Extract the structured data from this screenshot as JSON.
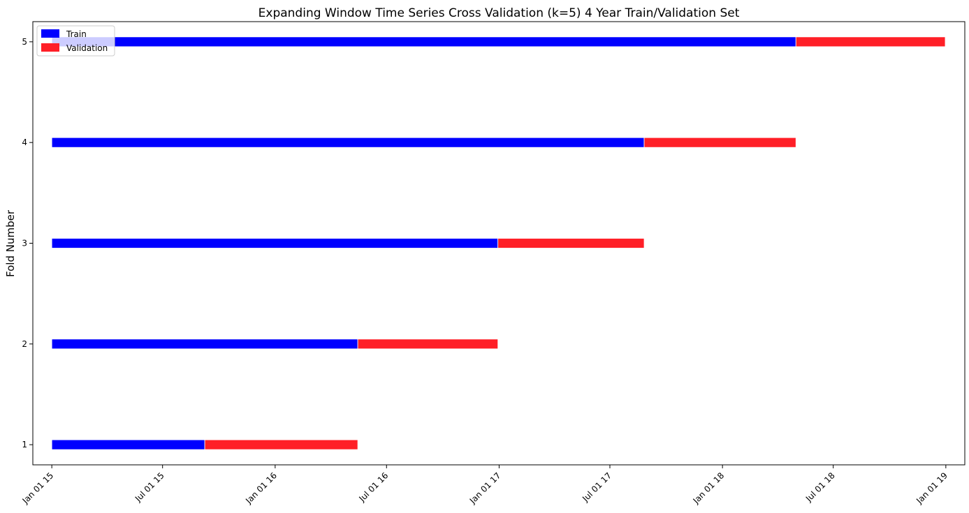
{
  "chart_data": {
    "type": "bar",
    "orientation": "horizontal",
    "title": "Expanding Window Time Series Cross Validation (k=5) 4 Year Train/Validation Set",
    "xlabel": "",
    "ylabel": "Fold Number",
    "x_ticks": [
      "Jan 01 15",
      "Jul 01 15",
      "Jan 01 16",
      "Jul 01 16",
      "Jan 01 17",
      "Jul 01 17",
      "Jan 01 18",
      "Jul 01 18",
      "Jan 01 19"
    ],
    "y_ticks": [
      "1",
      "2",
      "3",
      "4",
      "5"
    ],
    "xlim": [
      "2014-12-01",
      "2019-02-01"
    ],
    "ylim": [
      0.8,
      5.2
    ],
    "grid": false,
    "legend": "top-left",
    "series": [
      {
        "name": "Train",
        "color": "#0000ff",
        "segments": [
          {
            "fold": 1,
            "start": "2015-01-01",
            "end": "2015-09-08"
          },
          {
            "fold": 2,
            "start": "2015-01-01",
            "end": "2016-05-15"
          },
          {
            "fold": 3,
            "start": "2015-01-01",
            "end": "2016-12-30"
          },
          {
            "fold": 4,
            "start": "2015-01-01",
            "end": "2017-08-26"
          },
          {
            "fold": 5,
            "start": "2015-01-01",
            "end": "2018-05-01"
          }
        ]
      },
      {
        "name": "Validation",
        "color": "#ff1f27",
        "segments": [
          {
            "fold": 1,
            "start": "2015-09-08",
            "end": "2016-05-15"
          },
          {
            "fold": 2,
            "start": "2016-05-15",
            "end": "2016-12-30"
          },
          {
            "fold": 3,
            "start": "2016-12-30",
            "end": "2017-08-26"
          },
          {
            "fold": 4,
            "start": "2017-08-26",
            "end": "2018-05-01"
          },
          {
            "fold": 5,
            "start": "2018-05-01",
            "end": "2018-12-31"
          }
        ]
      }
    ]
  }
}
